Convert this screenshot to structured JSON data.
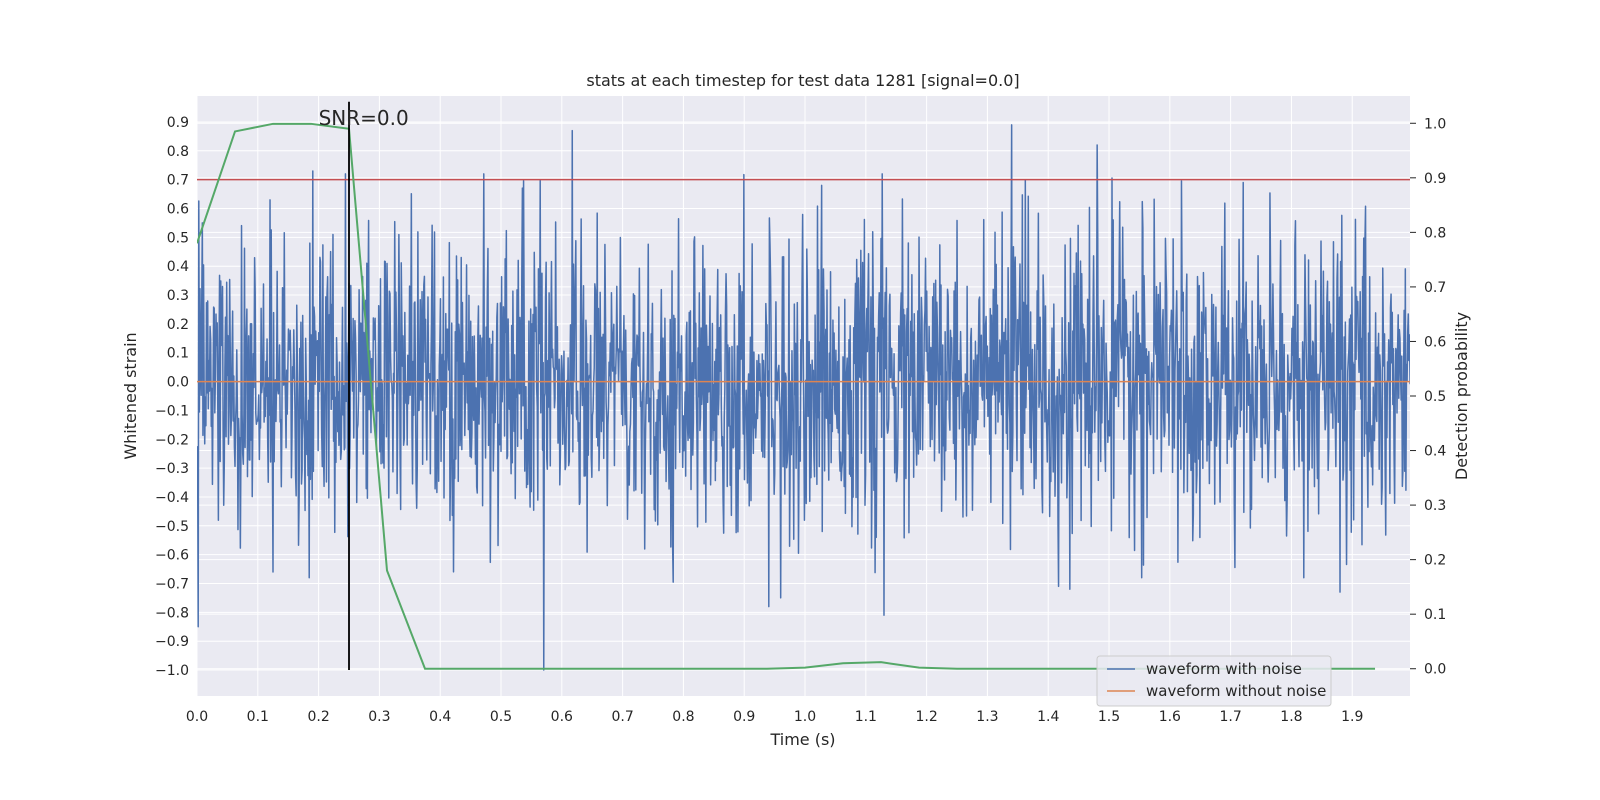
{
  "chart_data": {
    "type": "line",
    "title": "stats at each timestep for test data 1281 [signal=0.0]",
    "xlabel": "Time (s)",
    "ylabel": "Whitened strain",
    "y2label": "Detection probability",
    "xlim": [
      0.0,
      1.995
    ],
    "ylim": [
      -1.09,
      0.99
    ],
    "y2lim": [
      -0.05,
      1.05
    ],
    "xticks": [
      "0.0",
      "0.1",
      "0.2",
      "0.3",
      "0.4",
      "0.5",
      "0.6",
      "0.7",
      "0.8",
      "0.9",
      "1.0",
      "1.1",
      "1.2",
      "1.3",
      "1.4",
      "1.5",
      "1.6",
      "1.7",
      "1.8",
      "1.9"
    ],
    "yticks": [
      "0.9",
      "0.8",
      "0.7",
      "0.6",
      "0.5",
      "0.4",
      "0.3",
      "0.2",
      "0.1",
      "0.0",
      "−0.1",
      "−0.2",
      "−0.3",
      "−0.4",
      "−0.5",
      "−0.6",
      "−0.7",
      "−0.8",
      "−0.9",
      "−1.0"
    ],
    "y2ticks": [
      "1.0",
      "0.9",
      "0.8",
      "0.7",
      "0.6",
      "0.5",
      "0.4",
      "0.3",
      "0.2",
      "0.1",
      "0.0"
    ],
    "grid": true,
    "legend_position": "lower-right",
    "colors": {
      "noise": "#4c72b0",
      "clean": "#dd8452",
      "prob": "#55a868",
      "threshold": "#c44e52",
      "marker": "#000000",
      "plot_bg": "#eaeaf2",
      "grid": "#ffffff"
    },
    "annotation": {
      "text": "SNR=0.0",
      "x": 0.2,
      "y": 0.9
    },
    "series": [
      {
        "name": "waveform with noise",
        "axis": "left",
        "sample_rate": 1024,
        "x_start": 0.0,
        "x_end": 2.0,
        "amplitude_std": 0.25,
        "peaks": [
          {
            "x": 0.002,
            "y": -0.85
          },
          {
            "x": 0.009,
            "y": 0.55
          },
          {
            "x": 0.12,
            "y": 0.63
          },
          {
            "x": 0.125,
            "y": -0.66
          },
          {
            "x": 0.185,
            "y": -0.68
          },
          {
            "x": 0.19,
            "y": 0.73
          },
          {
            "x": 0.57,
            "y": -1.0
          },
          {
            "x": 0.617,
            "y": 0.87
          },
          {
            "x": 0.94,
            "y": -0.78
          },
          {
            "x": 0.96,
            "y": -0.75
          },
          {
            "x": 1.13,
            "y": -0.81
          },
          {
            "x": 1.34,
            "y": 0.89
          },
          {
            "x": 1.48,
            "y": 0.82
          },
          {
            "x": 1.82,
            "y": -0.68
          },
          {
            "x": 1.88,
            "y": -0.73
          }
        ]
      },
      {
        "name": "waveform without noise",
        "axis": "left",
        "x": [
          0.0,
          2.0
        ],
        "y": [
          0.0,
          0.0
        ]
      },
      {
        "axis": "right",
        "x": [
          0.0,
          0.0625,
          0.125,
          0.1875,
          0.25,
          0.3125,
          0.375,
          0.4375,
          0.5,
          0.5625,
          0.625,
          0.6875,
          0.75,
          0.8125,
          0.875,
          0.9375,
          1.0,
          1.0625,
          1.125,
          1.1875,
          1.25,
          1.3125,
          1.375,
          1.4375,
          1.5,
          1.5625,
          1.625,
          1.6875,
          1.75,
          1.8125,
          1.875,
          1.9375
        ],
        "y": [
          0.78,
          0.985,
          0.999,
          0.999,
          0.99,
          0.18,
          0.0,
          0.0,
          0.0,
          0.0,
          0.0,
          0.0,
          0.0,
          0.0,
          0.0,
          0.0,
          0.002,
          0.01,
          0.012,
          0.002,
          0.0,
          0.0,
          0.0,
          0.0,
          0.0,
          0.0,
          0.0,
          0.0,
          0.0,
          0.0,
          0.0,
          0.0
        ]
      }
    ],
    "threshold": {
      "axis": "left",
      "y": 0.7
    },
    "vline": {
      "x": 0.25,
      "y_from": -1.0,
      "y_to": 0.97
    }
  }
}
